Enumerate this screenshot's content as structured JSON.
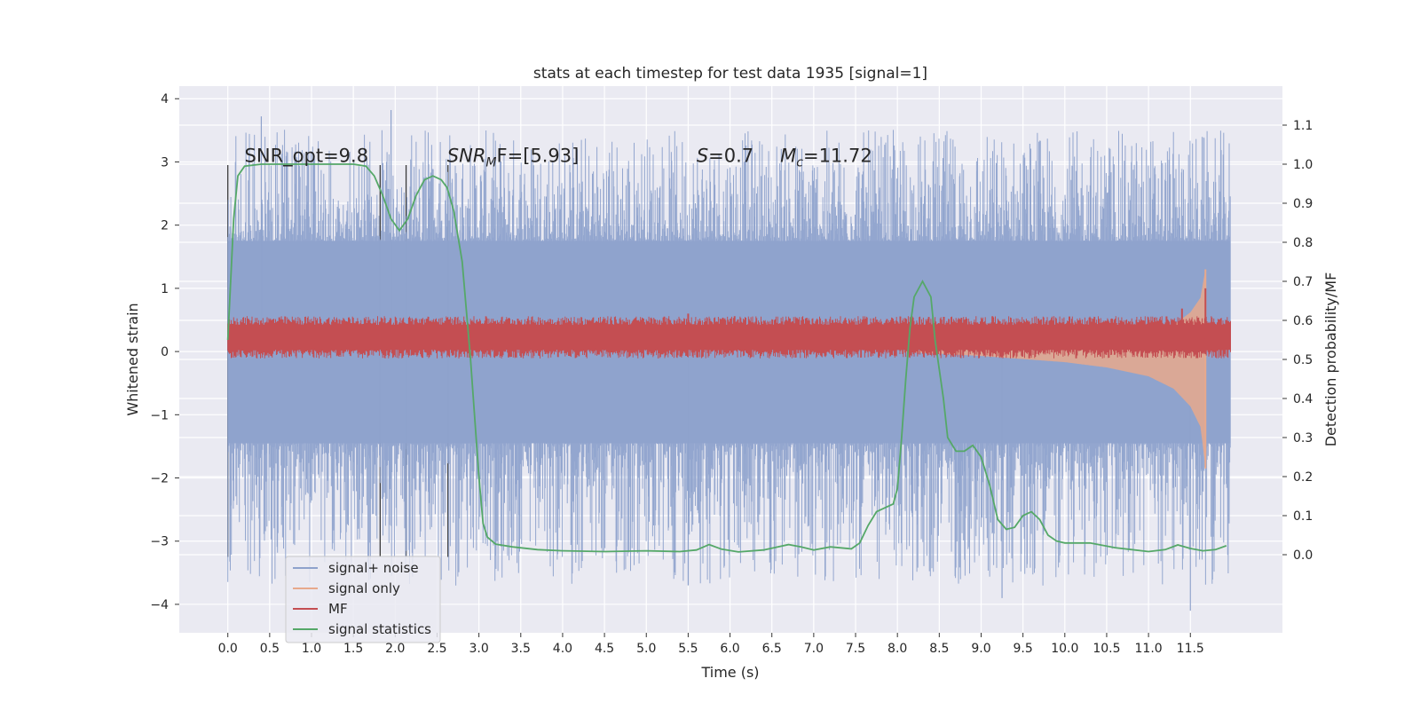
{
  "chart_data": {
    "type": "line",
    "title": "stats at each timestep for test data 1935 [signal=1]",
    "xlabel": "Time (s)",
    "ylabel_left": "Whitened strain",
    "ylabel_right": "Detection probability/MF",
    "xlim": [
      -0.58,
      12.6
    ],
    "ylim_left": [
      -4.45,
      4.2
    ],
    "ylim_right": [
      -0.2,
      1.2
    ],
    "x_ticks": [
      "0.0",
      "0.5",
      "1.0",
      "1.5",
      "2.0",
      "2.5",
      "3.0",
      "3.5",
      "4.0",
      "4.5",
      "5.0",
      "5.5",
      "6.0",
      "6.5",
      "7.0",
      "7.5",
      "8.0",
      "8.5",
      "9.0",
      "9.5",
      "10.0",
      "10.5",
      "11.0",
      "11.5"
    ],
    "y_ticks_left": [
      "−4",
      "−3",
      "−2",
      "−1",
      "0",
      "1",
      "2",
      "3",
      "4"
    ],
    "y_ticks_right": [
      "0.0",
      "0.1",
      "0.2",
      "0.3",
      "0.4",
      "0.5",
      "0.6",
      "0.7",
      "0.8",
      "0.9",
      "1.0",
      "1.1"
    ],
    "grid": true,
    "legend_position": "lower-left",
    "annotations": [
      {
        "text": "SNR_opt=9.8",
        "x": 0.2,
        "y": 3.0
      },
      {
        "text": "SNR_MF=[5.93]",
        "x": 2.62,
        "y": 3.0,
        "base": "SNR",
        "sub": "M",
        "tail": "F=[5.93]"
      },
      {
        "text": "S=0.7",
        "x": 5.6,
        "y": 3.0,
        "base": "S",
        "tail": "=0.7"
      },
      {
        "text": "M_c=11.72",
        "x": 6.6,
        "y": 3.0,
        "base": "M",
        "sub": "c",
        "tail": "=11.72"
      }
    ],
    "vertical_markers": [
      0.0,
      1.82,
      2.13,
      2.63
    ],
    "series": [
      {
        "name": "signal+ noise",
        "color": "#8ea2cc",
        "kind": "noise",
        "x_range": [
          0.0,
          11.98
        ],
        "core_band": [
          -1.45,
          1.75
        ],
        "extremes": {
          "max": 3.82,
          "min": -4.1
        }
      },
      {
        "name": "signal only",
        "color": "#e7a98c",
        "kind": "chirp",
        "x_range": [
          8.0,
          11.68
        ],
        "envelope": [
          {
            "x": 8.0,
            "a": 0.0
          },
          {
            "x": 9.0,
            "a": 0.05
          },
          {
            "x": 10.0,
            "a": 0.12
          },
          {
            "x": 10.5,
            "a": 0.18
          },
          {
            "x": 11.0,
            "a": 0.28
          },
          {
            "x": 11.3,
            "a": 0.42
          },
          {
            "x": 11.5,
            "a": 0.62
          },
          {
            "x": 11.62,
            "a": 0.85
          },
          {
            "x": 11.68,
            "a": 1.3
          }
        ]
      },
      {
        "name": "MF",
        "color": "#c44e52",
        "kind": "band",
        "x_range": [
          0.0,
          11.98
        ],
        "band": [
          0.03,
          0.42
        ],
        "spikes": [
          {
            "x": 11.68,
            "y": 1.0
          },
          {
            "x": 11.4,
            "y": 0.68
          },
          {
            "x": 5.5,
            "y": 0.6
          }
        ]
      },
      {
        "name": "signal statistics",
        "color": "#55a868",
        "kind": "line",
        "axis": "right",
        "points": [
          [
            0.0,
            0.55
          ],
          [
            0.07,
            0.86
          ],
          [
            0.12,
            0.97
          ],
          [
            0.2,
            0.995
          ],
          [
            0.4,
            1.0
          ],
          [
            0.8,
            1.0
          ],
          [
            1.2,
            1.0
          ],
          [
            1.5,
            1.0
          ],
          [
            1.65,
            0.995
          ],
          [
            1.75,
            0.97
          ],
          [
            1.85,
            0.92
          ],
          [
            1.95,
            0.86
          ],
          [
            2.05,
            0.83
          ],
          [
            2.15,
            0.86
          ],
          [
            2.25,
            0.92
          ],
          [
            2.35,
            0.96
          ],
          [
            2.45,
            0.97
          ],
          [
            2.55,
            0.96
          ],
          [
            2.62,
            0.94
          ],
          [
            2.7,
            0.88
          ],
          [
            2.8,
            0.75
          ],
          [
            2.9,
            0.5
          ],
          [
            3.0,
            0.2
          ],
          [
            3.05,
            0.08
          ],
          [
            3.1,
            0.045
          ],
          [
            3.2,
            0.027
          ],
          [
            3.4,
            0.02
          ],
          [
            3.7,
            0.013
          ],
          [
            4.0,
            0.01
          ],
          [
            4.5,
            0.008
          ],
          [
            5.0,
            0.01
          ],
          [
            5.4,
            0.008
          ],
          [
            5.6,
            0.012
          ],
          [
            5.75,
            0.026
          ],
          [
            5.9,
            0.014
          ],
          [
            6.1,
            0.007
          ],
          [
            6.4,
            0.012
          ],
          [
            6.7,
            0.026
          ],
          [
            6.85,
            0.02
          ],
          [
            7.0,
            0.012
          ],
          [
            7.2,
            0.02
          ],
          [
            7.45,
            0.015
          ],
          [
            7.55,
            0.03
          ],
          [
            7.65,
            0.075
          ],
          [
            7.75,
            0.11
          ],
          [
            7.85,
            0.12
          ],
          [
            7.95,
            0.13
          ],
          [
            8.0,
            0.17
          ],
          [
            8.05,
            0.3
          ],
          [
            8.1,
            0.45
          ],
          [
            8.15,
            0.58
          ],
          [
            8.2,
            0.66
          ],
          [
            8.3,
            0.7
          ],
          [
            8.4,
            0.66
          ],
          [
            8.45,
            0.55
          ],
          [
            8.55,
            0.4
          ],
          [
            8.6,
            0.3
          ],
          [
            8.7,
            0.265
          ],
          [
            8.8,
            0.265
          ],
          [
            8.9,
            0.28
          ],
          [
            9.0,
            0.25
          ],
          [
            9.1,
            0.18
          ],
          [
            9.2,
            0.09
          ],
          [
            9.3,
            0.065
          ],
          [
            9.4,
            0.07
          ],
          [
            9.5,
            0.1
          ],
          [
            9.6,
            0.11
          ],
          [
            9.7,
            0.09
          ],
          [
            9.8,
            0.05
          ],
          [
            9.9,
            0.035
          ],
          [
            10.0,
            0.03
          ],
          [
            10.3,
            0.03
          ],
          [
            10.6,
            0.018
          ],
          [
            11.0,
            0.008
          ],
          [
            11.2,
            0.013
          ],
          [
            11.35,
            0.025
          ],
          [
            11.5,
            0.016
          ],
          [
            11.65,
            0.01
          ],
          [
            11.8,
            0.013
          ],
          [
            11.93,
            0.023
          ]
        ]
      }
    ]
  }
}
